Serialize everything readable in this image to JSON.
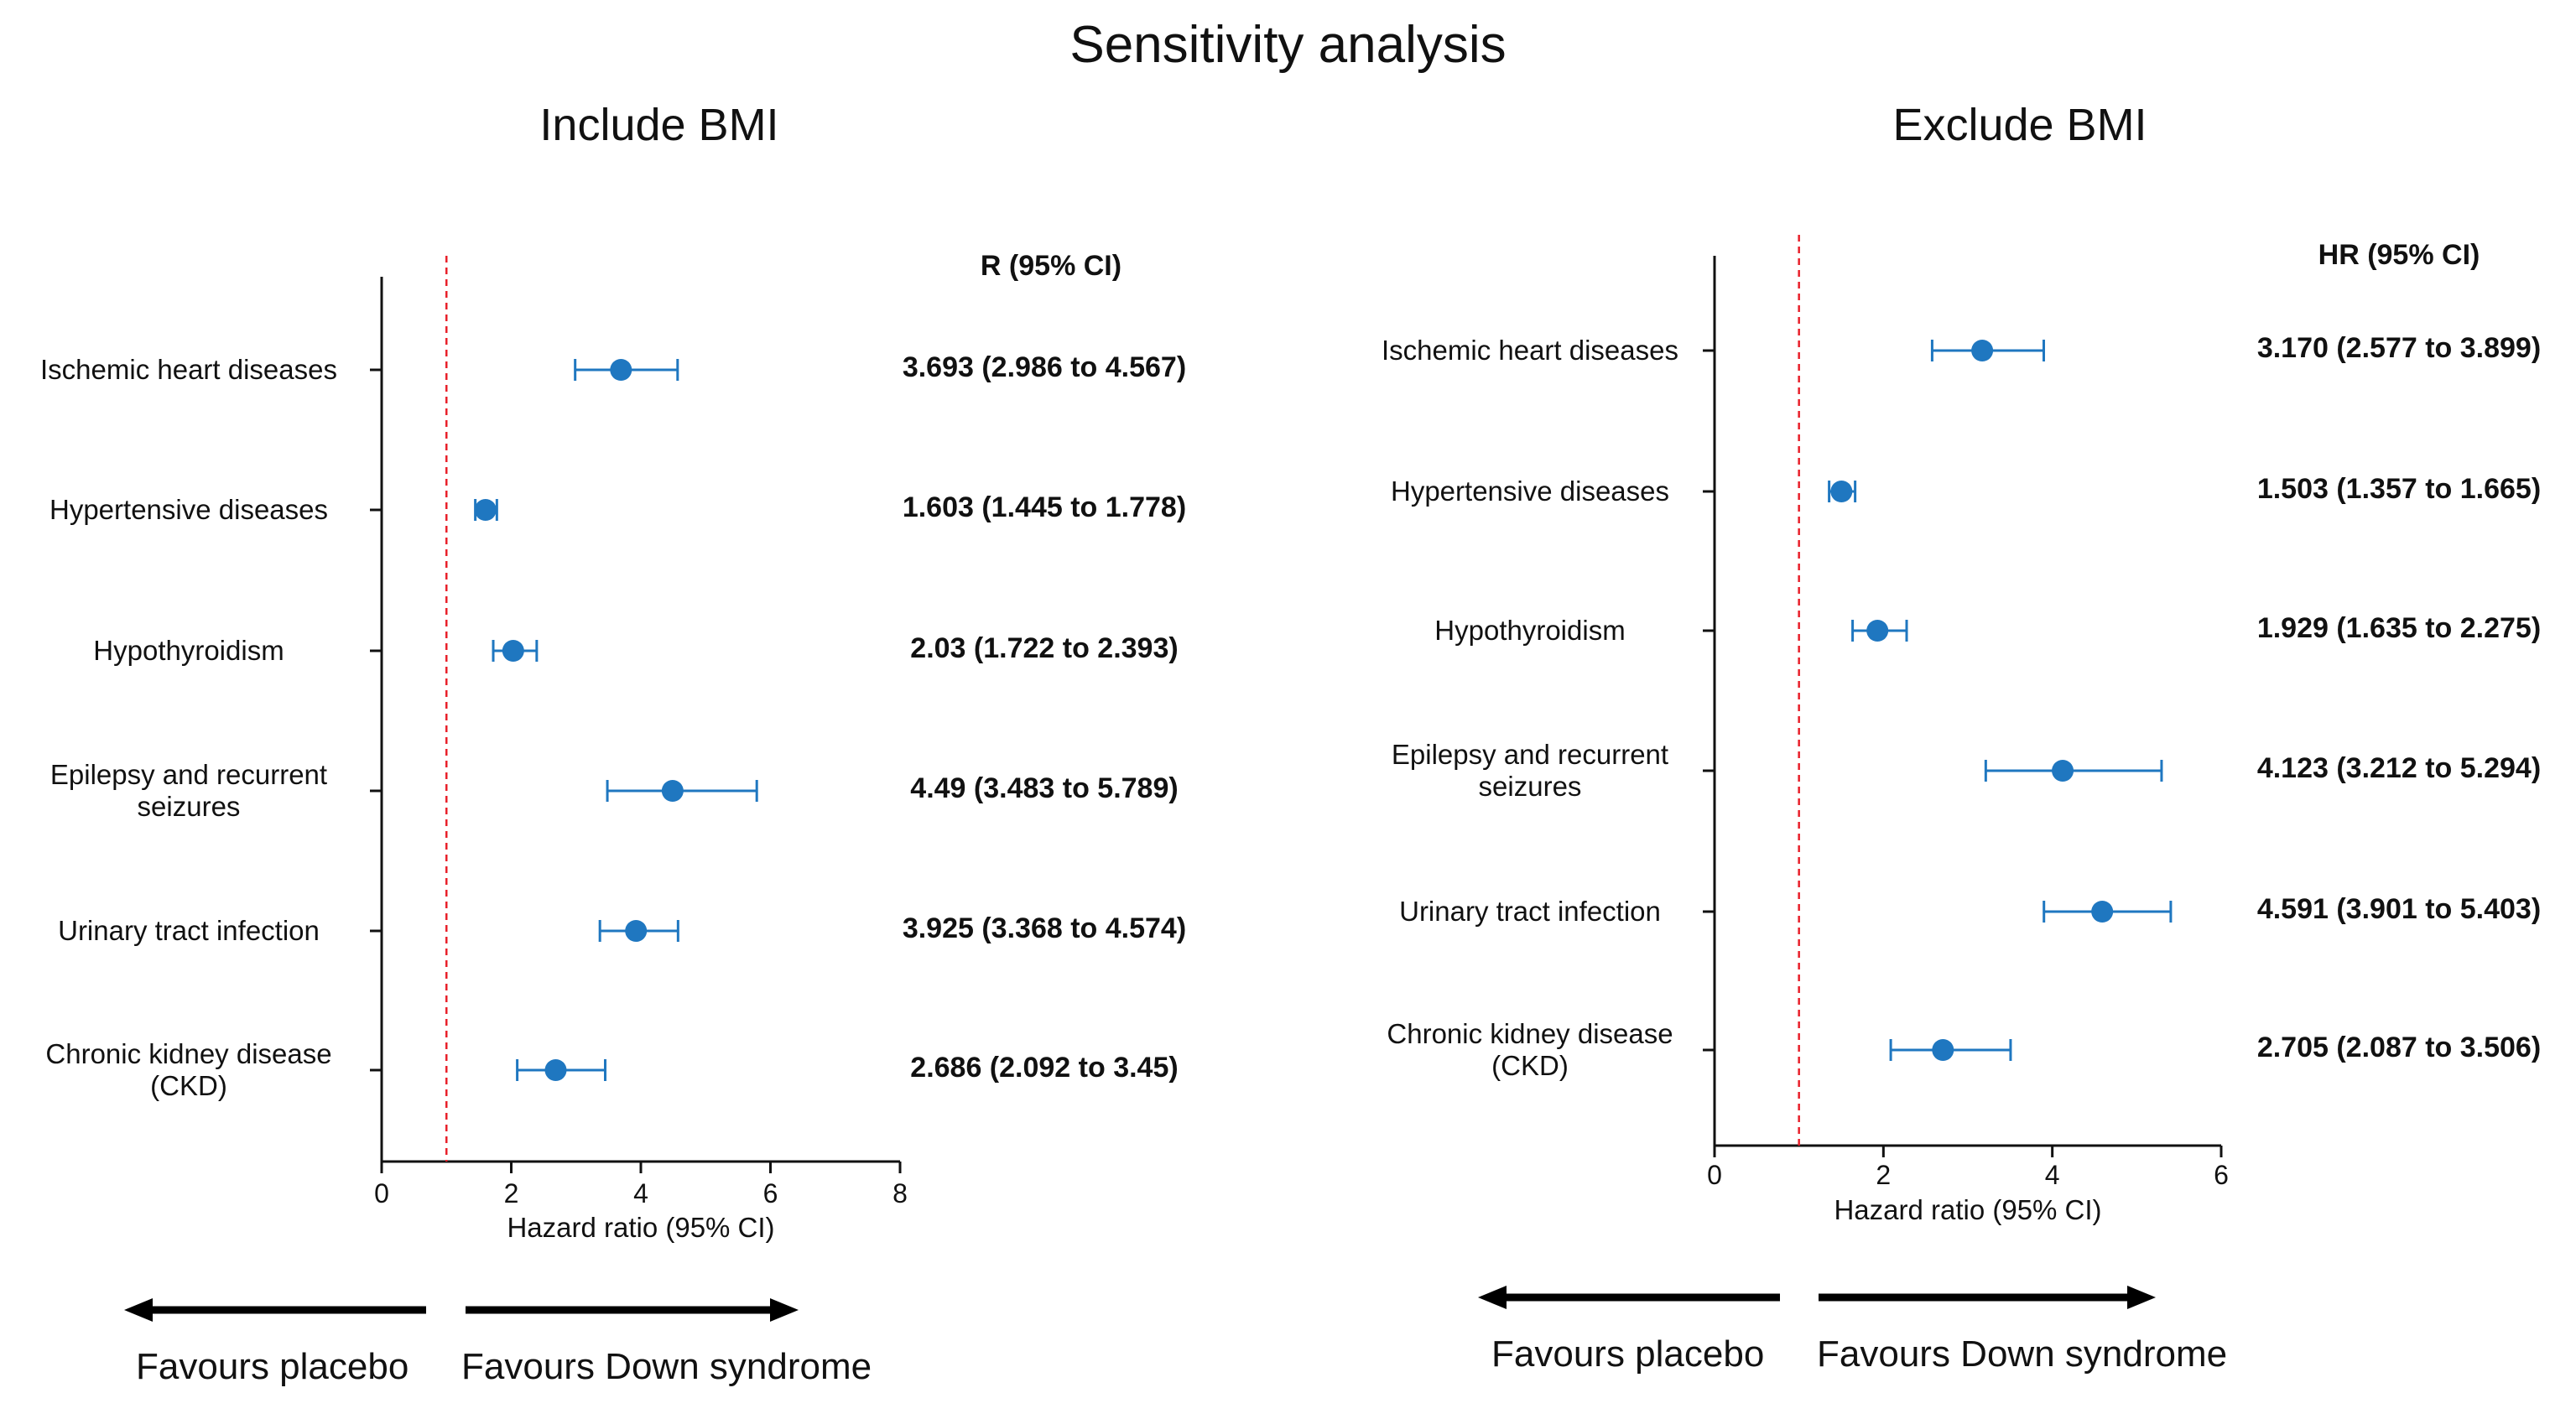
{
  "title": "Sensitivity analysis",
  "favours_left": "Favours placebo",
  "favours_right": "Favours Down syndrome",
  "colors": {
    "marker": "#1f77c0",
    "reference_line": "#e8202a",
    "axis": "#111111"
  },
  "chart_data": [
    {
      "type": "forest",
      "panel_title": "Include BMI",
      "column_header": "R (95% CI)",
      "xlabel": "Hazard ratio (95% CI)",
      "xlim": [
        0,
        8
      ],
      "xticks": [
        0,
        2,
        4,
        6,
        8
      ],
      "reference_line": 1,
      "grid": false,
      "rows": [
        {
          "category": "Ischemic heart diseases",
          "hr": 3.693,
          "lower": 2.986,
          "upper": 4.567,
          "label": "3.693 (2.986 to 4.567)"
        },
        {
          "category": "Hypertensive diseases",
          "hr": 1.603,
          "lower": 1.445,
          "upper": 1.778,
          "label": "1.603 (1.445 to 1.778)"
        },
        {
          "category": "Hypothyroidism",
          "hr": 2.03,
          "lower": 1.722,
          "upper": 2.393,
          "label": "2.03 (1.722 to 2.393)"
        },
        {
          "category": "Epilepsy and recurrent\nseizures",
          "hr": 4.49,
          "lower": 3.483,
          "upper": 5.789,
          "label": "4.49 (3.483 to 5.789)"
        },
        {
          "category": "Urinary tract infection",
          "hr": 3.925,
          "lower": 3.368,
          "upper": 4.574,
          "label": "3.925 (3.368 to 4.574)"
        },
        {
          "category": "Chronic kidney disease\n(CKD)",
          "hr": 2.686,
          "lower": 2.092,
          "upper": 3.45,
          "label": "2.686 (2.092 to 3.45)"
        }
      ]
    },
    {
      "type": "forest",
      "panel_title": "Exclude BMI",
      "column_header": "HR (95% CI)",
      "xlabel": "Hazard ratio (95% CI)",
      "xlim": [
        0,
        6
      ],
      "xticks": [
        0,
        2,
        4,
        6
      ],
      "reference_line": 1,
      "grid": false,
      "rows": [
        {
          "category": "Ischemic heart diseases",
          "hr": 3.17,
          "lower": 2.577,
          "upper": 3.899,
          "label": "3.170 (2.577 to 3.899)"
        },
        {
          "category": "Hypertensive diseases",
          "hr": 1.503,
          "lower": 1.357,
          "upper": 1.665,
          "label": "1.503 (1.357 to 1.665)"
        },
        {
          "category": "Hypothyroidism",
          "hr": 1.929,
          "lower": 1.635,
          "upper": 2.275,
          "label": "1.929 (1.635 to 2.275)"
        },
        {
          "category": "Epilepsy and recurrent\nseizures",
          "hr": 4.123,
          "lower": 3.212,
          "upper": 5.294,
          "label": "4.123 (3.212 to 5.294)"
        },
        {
          "category": "Urinary tract infection",
          "hr": 4.591,
          "lower": 3.901,
          "upper": 5.403,
          "label": "4.591 (3.901 to 5.403)"
        },
        {
          "category": "Chronic kidney disease\n(CKD)",
          "hr": 2.705,
          "lower": 2.087,
          "upper": 3.506,
          "label": "2.705 (2.087 to 3.506)"
        }
      ]
    }
  ]
}
